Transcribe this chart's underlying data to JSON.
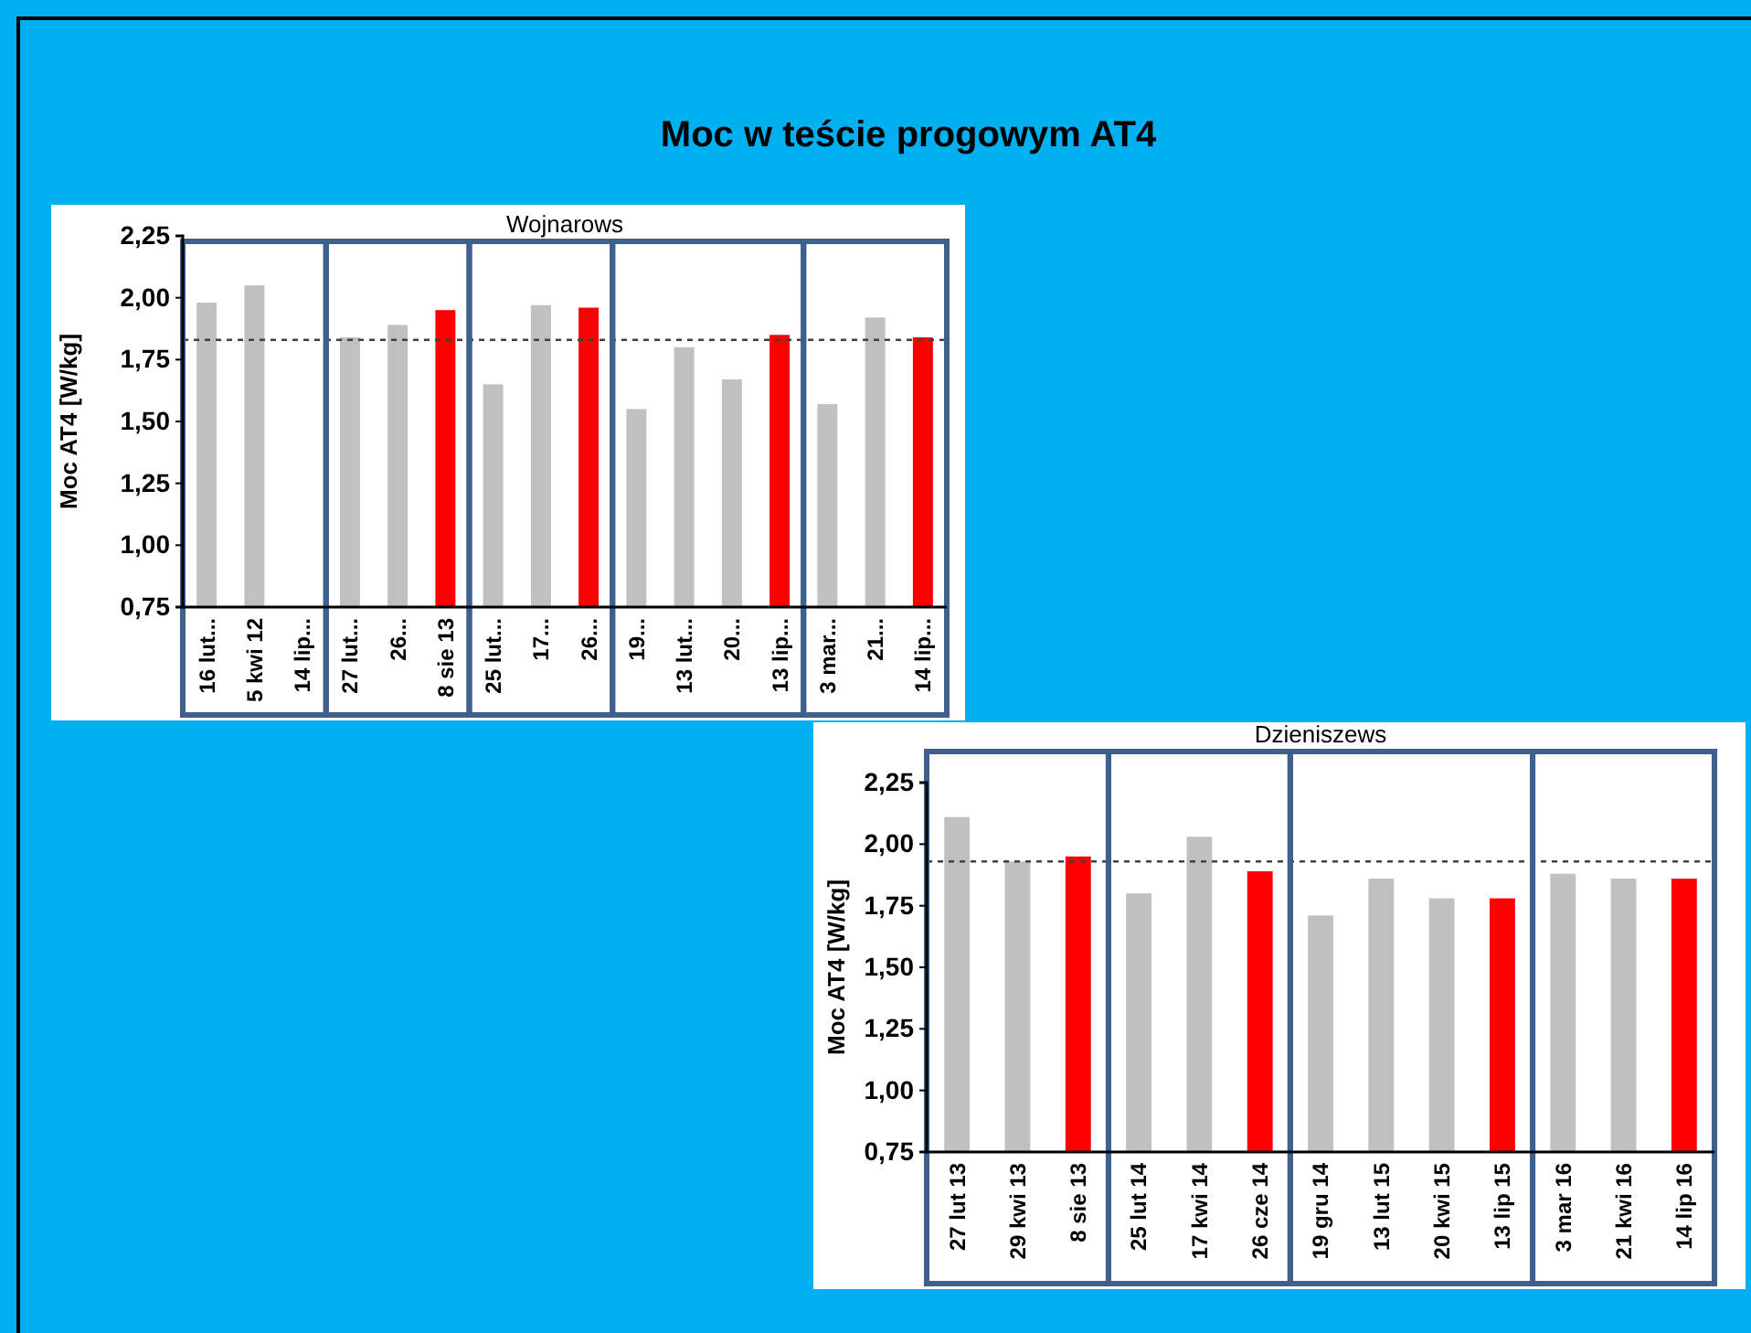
{
  "chart_data": [
    {
      "type": "bar",
      "title": "Moc w teście progowym AT4",
      "subtitle": "Wojnarows",
      "ylabel": "Moc AT4 [W/kg]",
      "categories": [
        "16 lut...",
        "5 kwi 12",
        "14 lip...",
        "27 lut...",
        "26...",
        "8 sie 13",
        "25 lut...",
        "17...",
        "26...",
        "19...",
        "13 lut...",
        "20...",
        "13 lip...",
        "3 mar...",
        "21...",
        "14 lip..."
      ],
      "values": [
        1.98,
        2.05,
        null,
        1.84,
        1.89,
        1.95,
        1.65,
        1.97,
        1.96,
        1.55,
        1.8,
        1.67,
        1.85,
        1.57,
        1.92,
        1.84
      ],
      "colors": [
        "#c0c0c0",
        "#c0c0c0",
        null,
        "#c0c0c0",
        "#c0c0c0",
        "#ff0000",
        "#c0c0c0",
        "#c0c0c0",
        "#ff0000",
        "#c0c0c0",
        "#c0c0c0",
        "#c0c0c0",
        "#ff0000",
        "#c0c0c0",
        "#c0c0c0",
        "#ff0000"
      ],
      "ylim": [
        0.75,
        2.25
      ],
      "yticks": [
        {
          "value": 0.75,
          "label": "0,75"
        },
        {
          "value": 1.0,
          "label": "1,00"
        },
        {
          "value": 1.25,
          "label": "1,25"
        },
        {
          "value": 1.5,
          "label": "1,50"
        },
        {
          "value": 1.75,
          "label": "1,75"
        },
        {
          "value": 2.0,
          "label": "2,00"
        },
        {
          "value": 2.25,
          "label": "2,25"
        }
      ],
      "ref_lines": [
        {
          "axis": "y",
          "value": 1.83,
          "color": "#404040",
          "line_style": "dashed"
        }
      ]
    },
    {
      "type": "bar",
      "title": "Dzieniszews",
      "ylabel": "Moc AT4 [W/kg]",
      "categories": [
        "27 lut 13",
        "29 kwi 13",
        "8 sie 13",
        "25 lut 14",
        "17 kwi 14",
        "26 cze 14",
        "19 gru 14",
        "13 lut 15",
        "20 kwi 15",
        "13 lip 15",
        "3 mar 16",
        "21 kwi 16",
        "14 lip 16"
      ],
      "values": [
        2.11,
        1.93,
        1.95,
        1.8,
        2.03,
        1.89,
        1.71,
        1.86,
        1.78,
        1.78,
        1.88,
        1.86,
        1.86
      ],
      "colors": [
        "#c0c0c0",
        "#c0c0c0",
        "#ff0000",
        "#c0c0c0",
        "#c0c0c0",
        "#ff0000",
        "#c0c0c0",
        "#c0c0c0",
        "#c0c0c0",
        "#ff0000",
        "#c0c0c0",
        "#c0c0c0",
        "#ff0000"
      ],
      "ylim": [
        0.75,
        2.25
      ],
      "yticks": [
        {
          "value": 0.75,
          "label": "0,75"
        },
        {
          "value": 1.0,
          "label": "1,00"
        },
        {
          "value": 1.25,
          "label": "1,25"
        },
        {
          "value": 1.5,
          "label": "1,50"
        },
        {
          "value": 1.75,
          "label": "1,75"
        },
        {
          "value": 2.0,
          "label": "2,00"
        },
        {
          "value": 2.25,
          "label": "2,25"
        }
      ],
      "ref_lines": [
        {
          "axis": "y",
          "value": 1.93,
          "color": "#404040",
          "line_style": "dashed"
        }
      ]
    }
  ]
}
